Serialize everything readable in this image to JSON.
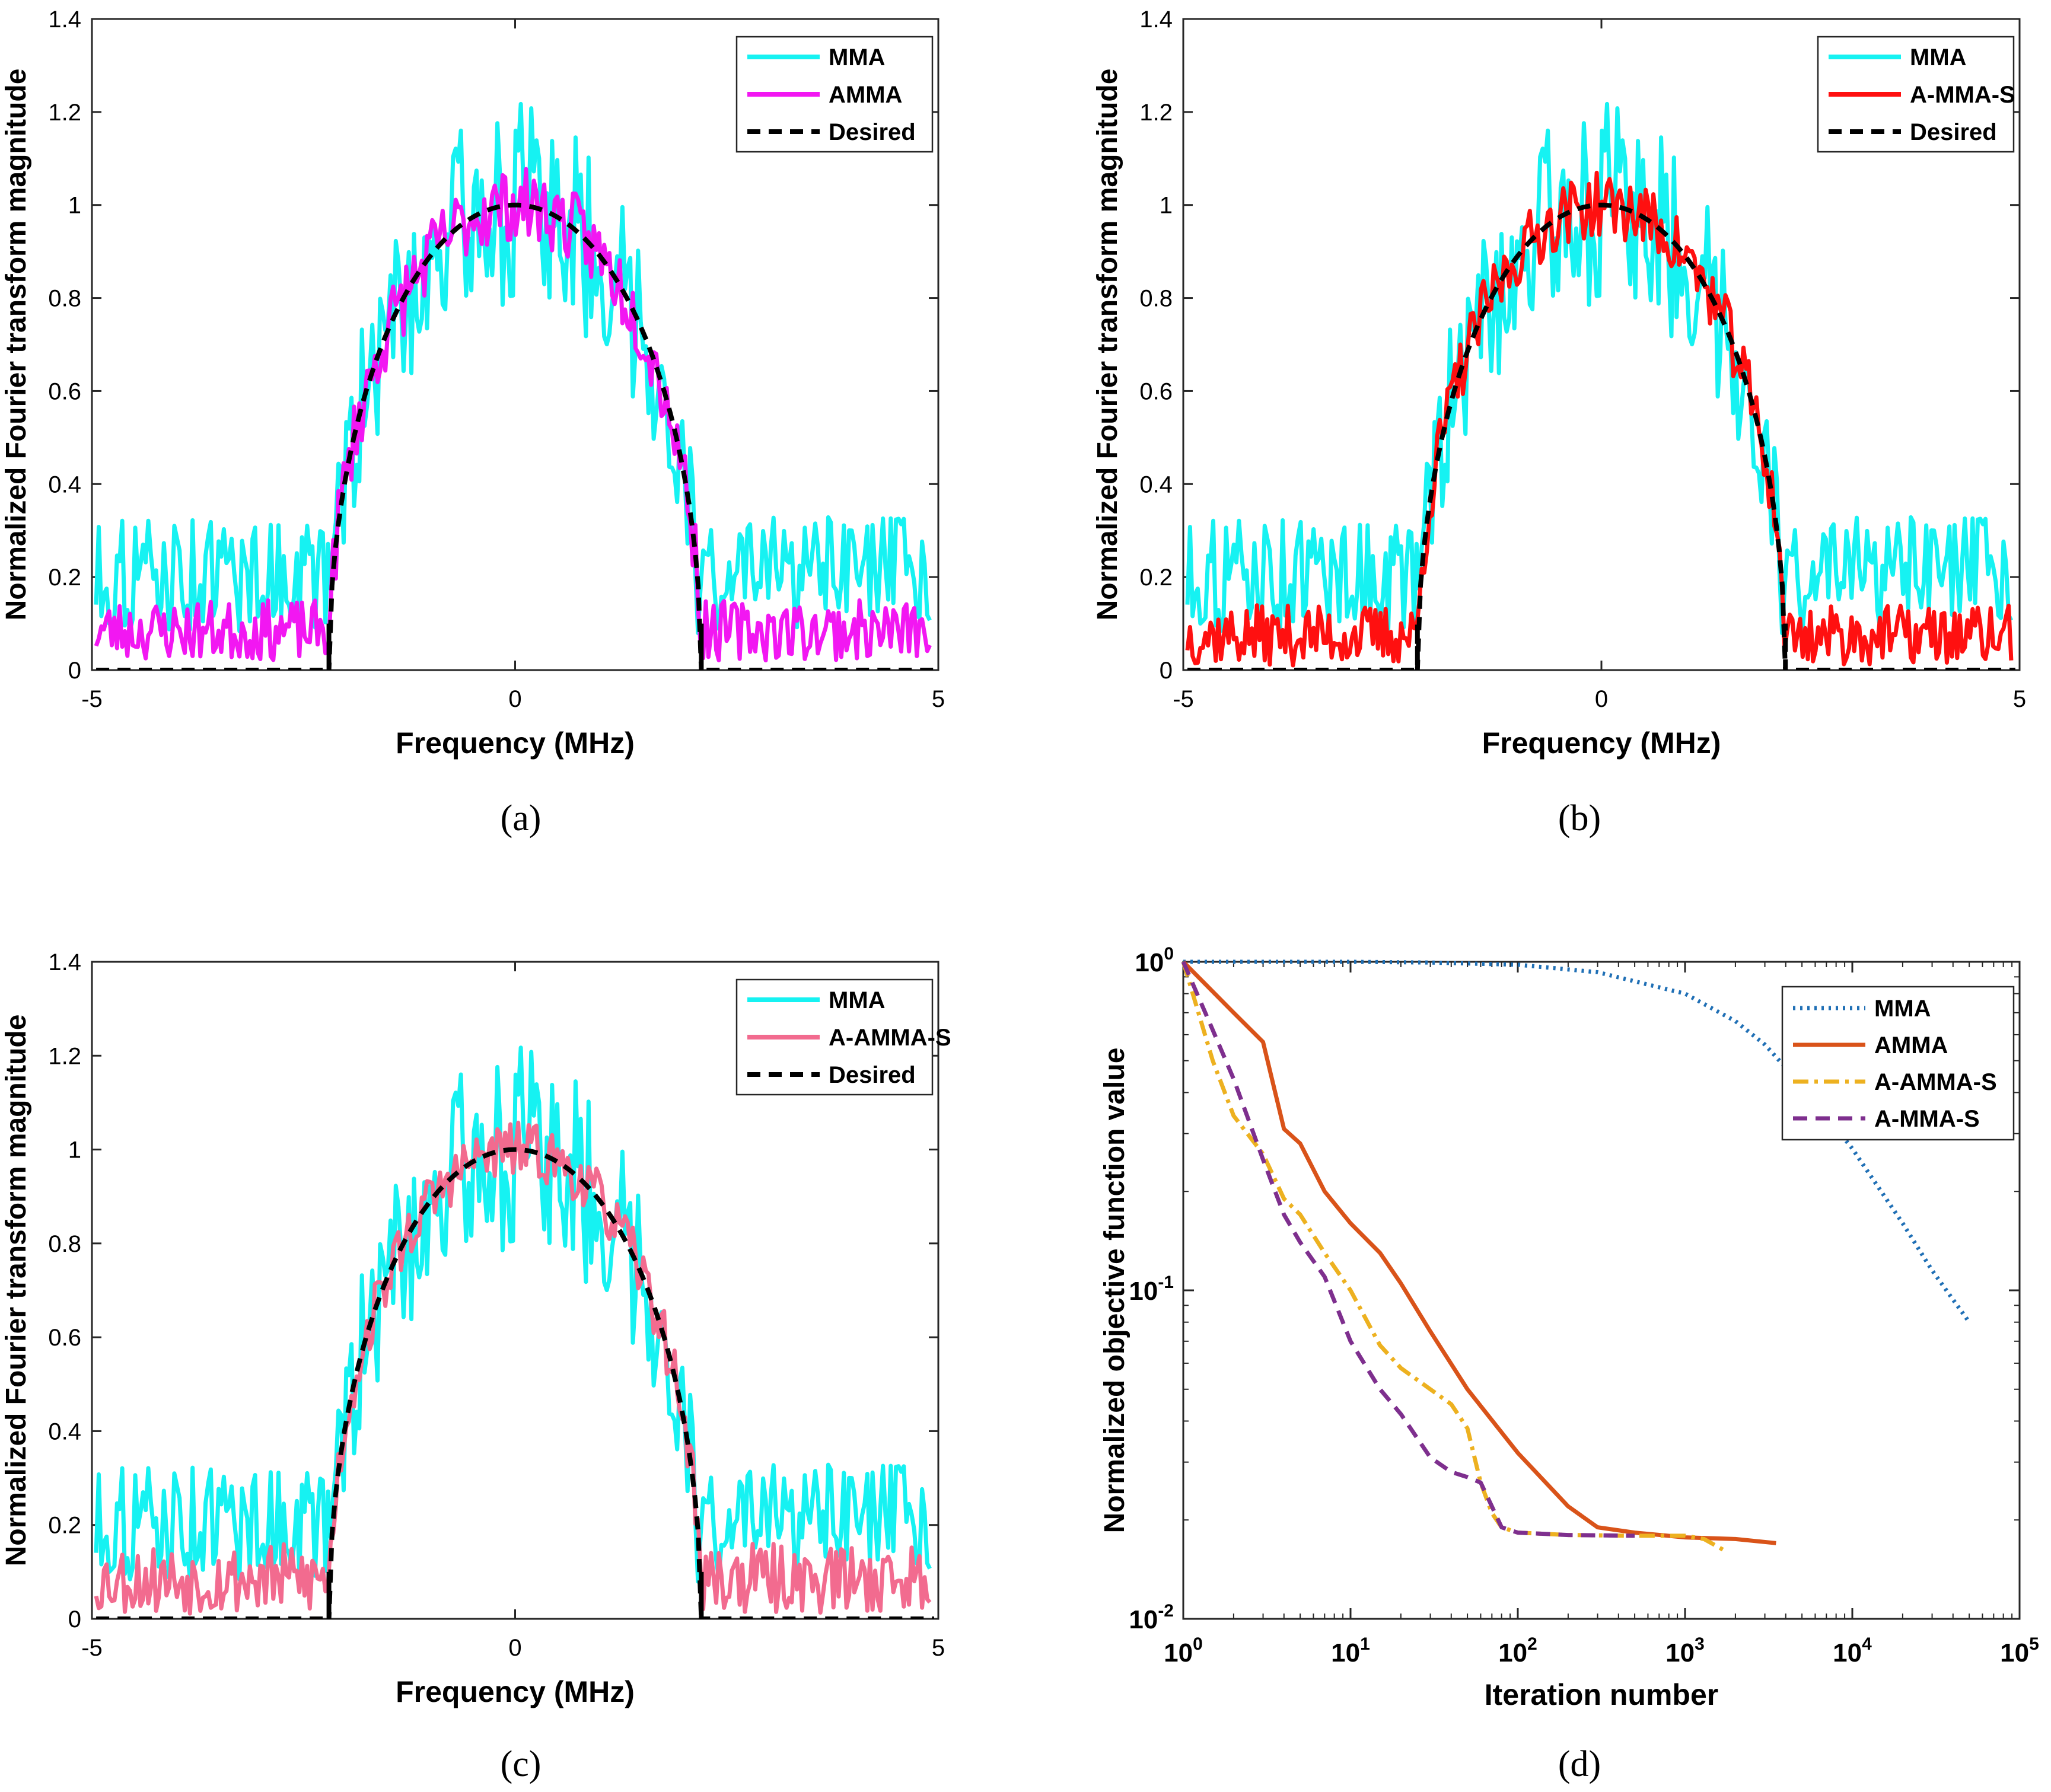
{
  "colors": {
    "mma": "#16F2F2",
    "amma": "#F217F2",
    "a_mma_s": "#FF1010",
    "a_amma_s": "#F26B8F",
    "desired": "#000000",
    "d_mma": "#1F6FB5",
    "d_amma": "#D95319",
    "d_a_amma_s": "#EDB120",
    "d_a_mma_s": "#7E2F8E"
  },
  "chart_data": [
    {
      "id": "a",
      "type": "line",
      "caption": "(a)",
      "xlabel": "Frequency (MHz)",
      "ylabel": "Normalized Fourier transform magnitude",
      "xlim": [
        -5,
        5
      ],
      "ylim": [
        0,
        1.4
      ],
      "xticks": [
        "-5",
        "0",
        "5"
      ],
      "yticks": [
        "0",
        "0.2",
        "0.4",
        "0.6",
        "0.8",
        "1",
        "1.2",
        "1.4"
      ],
      "grid": false,
      "legend_position": "top-right",
      "series": [
        {
          "name": "MMA",
          "color_key": "mma",
          "style": "solid",
          "description": "noisy in-band estimate, noise floor 0.1-0.33 out of band"
        },
        {
          "name": "AMMA",
          "color_key": "amma",
          "style": "solid",
          "description": "close to desired in band, 0.02-0.15 out of band"
        },
        {
          "name": "Desired",
          "color_key": "desired",
          "style": "dashed",
          "description": "sqrt(1-(f/2.2)^2) for |f|<2.2 MHz, 0 elsewhere"
        }
      ],
      "desired_band_edge": 2.2
    },
    {
      "id": "b",
      "type": "line",
      "caption": "(b)",
      "xlabel": "Frequency (MHz)",
      "ylabel": "Normalized Fourier transform magnitude",
      "xlim": [
        -5,
        5
      ],
      "ylim": [
        0,
        1.4
      ],
      "xticks": [
        "-5",
        "0",
        "5"
      ],
      "yticks": [
        "0",
        "0.2",
        "0.4",
        "0.6",
        "0.8",
        "1",
        "1.2",
        "1.4"
      ],
      "grid": false,
      "legend_position": "top-right",
      "series": [
        {
          "name": "MMA",
          "color_key": "mma",
          "style": "solid"
        },
        {
          "name": "A-MMA-S",
          "color_key": "a_mma_s",
          "style": "solid"
        },
        {
          "name": "Desired",
          "color_key": "desired",
          "style": "dashed"
        }
      ],
      "desired_band_edge": 2.2
    },
    {
      "id": "c",
      "type": "line",
      "caption": "(c)",
      "xlabel": "Frequency (MHz)",
      "ylabel": "Normalized Fourier transform magnitude",
      "xlim": [
        -5,
        5
      ],
      "ylim": [
        0,
        1.4
      ],
      "xticks": [
        "-5",
        "0",
        "5"
      ],
      "yticks": [
        "0",
        "0.2",
        "0.4",
        "0.6",
        "0.8",
        "1",
        "1.2",
        "1.4"
      ],
      "grid": false,
      "legend_position": "top-right",
      "series": [
        {
          "name": "MMA",
          "color_key": "mma",
          "style": "solid"
        },
        {
          "name": "A-AMMA-S",
          "color_key": "a_amma_s",
          "style": "solid"
        },
        {
          "name": "Desired",
          "color_key": "desired",
          "style": "dashed"
        }
      ],
      "desired_band_edge": 2.2
    },
    {
      "id": "d",
      "type": "line",
      "caption": "(d)",
      "xlabel": "Iteration number",
      "ylabel": "Normalized objective function value",
      "xscale": "log",
      "yscale": "log",
      "xlim": [
        1,
        100000
      ],
      "ylim": [
        0.01,
        1
      ],
      "xticks": [
        {
          "base": "10",
          "exp": "0"
        },
        {
          "base": "10",
          "exp": "1"
        },
        {
          "base": "10",
          "exp": "2"
        },
        {
          "base": "10",
          "exp": "3"
        },
        {
          "base": "10",
          "exp": "4"
        },
        {
          "base": "10",
          "exp": "5"
        }
      ],
      "yticks": [
        {
          "base": "10",
          "exp": "-2"
        },
        {
          "base": "10",
          "exp": "-1"
        },
        {
          "base": "10",
          "exp": "0"
        }
      ],
      "grid": false,
      "legend_position": "top-right",
      "series": [
        {
          "name": "MMA",
          "color_key": "d_mma",
          "style": "dotted",
          "x": [
            1,
            3,
            10,
            30,
            100,
            300,
            1000,
            2000,
            3000,
            5000,
            10000,
            20000,
            30000,
            50000
          ],
          "y": [
            1,
            1,
            1,
            0.995,
            0.98,
            0.93,
            0.8,
            0.66,
            0.56,
            0.42,
            0.27,
            0.16,
            0.115,
            0.08
          ]
        },
        {
          "name": "AMMA",
          "color_key": "d_amma",
          "style": "solid",
          "x": [
            1,
            2,
            3,
            4,
            5,
            7,
            10,
            15,
            20,
            30,
            50,
            100,
            200,
            300,
            500,
            1000,
            2000,
            3500
          ],
          "y": [
            1,
            0.7,
            0.57,
            0.31,
            0.28,
            0.2,
            0.16,
            0.13,
            0.105,
            0.075,
            0.05,
            0.032,
            0.022,
            0.019,
            0.0183,
            0.0177,
            0.0175,
            0.017
          ]
        },
        {
          "name": "A-AMMA-S",
          "color_key": "d_a_amma_s",
          "style": "dashdot",
          "x": [
            1,
            1.5,
            2,
            3,
            4,
            5,
            7,
            10,
            15,
            20,
            30,
            40,
            50,
            60,
            70,
            80,
            100,
            200,
            500,
            1000,
            1300,
            1700
          ],
          "y": [
            1,
            0.5,
            0.34,
            0.26,
            0.19,
            0.17,
            0.13,
            0.1,
            0.068,
            0.058,
            0.05,
            0.045,
            0.038,
            0.026,
            0.021,
            0.019,
            0.0183,
            0.018,
            0.0179,
            0.0179,
            0.0175,
            0.0162
          ]
        },
        {
          "name": "A-MMA-S",
          "color_key": "d_a_mma_s",
          "style": "dashed",
          "x": [
            1,
            1.5,
            2,
            3,
            4,
            5,
            7,
            10,
            15,
            20,
            30,
            40,
            50,
            60,
            70,
            80,
            100,
            200,
            500
          ],
          "y": [
            1,
            0.62,
            0.44,
            0.25,
            0.17,
            0.14,
            0.11,
            0.07,
            0.05,
            0.042,
            0.031,
            0.028,
            0.027,
            0.026,
            0.022,
            0.019,
            0.0183,
            0.018,
            0.0179
          ]
        }
      ]
    }
  ]
}
